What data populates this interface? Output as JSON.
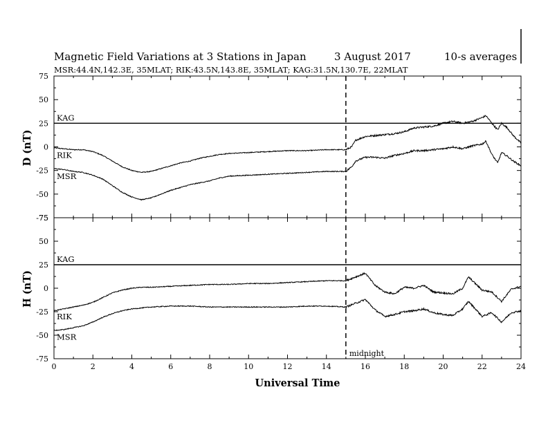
{
  "chart_data": {
    "type": "line",
    "title": "Magnetic Field Variations at 3 Stations in Japan",
    "date": "3   August  2017",
    "averaging": "10-s averages",
    "subtitle": "MSR:44.4N,142.3E, 35MLAT;  RIK:43.5N,143.8E, 35MLAT;  KAG:31.5N,130.7E, 22MLAT",
    "xlabel": "Universal Time",
    "xlim": [
      0,
      24
    ],
    "xticks": [
      "0",
      "2",
      "4",
      "6",
      "8",
      "10",
      "12",
      "14",
      "16",
      "18",
      "20",
      "22",
      "24"
    ],
    "midnight_marker": {
      "x": 15,
      "label": "midnight"
    },
    "panels": [
      {
        "ylabel": "D (nT)",
        "ylim": [
          -75,
          75
        ],
        "yticks": [
          "75",
          "50",
          "25",
          "0",
          "-25",
          "-50",
          "-75"
        ],
        "series": [
          {
            "name": "KAG",
            "x": [
              0,
              24
            ],
            "y": [
              25,
              25
            ]
          },
          {
            "name": "RIK",
            "x": [
              0,
              0.5,
              1,
              1.5,
              2,
              2.5,
              3,
              3.5,
              4,
              4.5,
              5,
              5.5,
              6,
              6.5,
              7,
              7.5,
              8,
              8.5,
              9,
              10,
              11,
              12,
              13,
              14,
              15,
              15.3,
              15.5,
              16,
              16.5,
              17,
              17.5,
              18,
              18.5,
              19,
              19.5,
              20,
              20.5,
              21,
              21.5,
              22,
              22.2,
              22.5,
              22.8,
              23,
              23.3,
              23.6,
              24
            ],
            "y": [
              -1,
              -2,
              -3,
              -3,
              -5,
              -9,
              -15,
              -21,
              -25,
              -27,
              -26,
              -23,
              -20,
              -17,
              -15,
              -12,
              -10,
              -8,
              -7,
              -6,
              -5,
              -4,
              -4,
              -3,
              -3,
              0,
              7,
              11,
              12,
              13,
              14,
              16,
              20,
              21,
              22,
              25,
              27,
              25,
              27,
              31,
              33,
              25,
              18,
              25,
              20,
              12,
              4
            ]
          },
          {
            "name": "MSR",
            "x": [
              0,
              0.5,
              1,
              1.5,
              2,
              2.5,
              3,
              3.5,
              4,
              4.5,
              5,
              5.5,
              6,
              6.5,
              7,
              7.5,
              8,
              8.5,
              9,
              10,
              11,
              12,
              13,
              14,
              15,
              15.3,
              15.5,
              16,
              16.5,
              17,
              17.5,
              18,
              18.5,
              19,
              19.5,
              20,
              20.5,
              21,
              21.5,
              22,
              22.2,
              22.5,
              22.8,
              23,
              23.3,
              23.6,
              24
            ],
            "y": [
              -23,
              -24,
              -26,
              -27,
              -30,
              -34,
              -41,
              -48,
              -53,
              -56,
              -54,
              -50,
              -46,
              -43,
              -40,
              -38,
              -36,
              -33,
              -31,
              -30,
              -29,
              -28,
              -27,
              -26,
              -26,
              -21,
              -15,
              -11,
              -11,
              -12,
              -9,
              -7,
              -4,
              -4,
              -3,
              -2,
              0,
              -2,
              1,
              3,
              6,
              -8,
              -17,
              -6,
              -10,
              -15,
              -20
            ]
          }
        ]
      },
      {
        "ylabel": "H (nT)",
        "ylim": [
          -75,
          75
        ],
        "yticks": [
          "75",
          "50",
          "25",
          "0",
          "-25",
          "-50",
          "-75"
        ],
        "series": [
          {
            "name": "KAG",
            "x": [
              0,
              24
            ],
            "y": [
              25,
              25
            ]
          },
          {
            "name": "RIK",
            "x": [
              0,
              0.5,
              1,
              1.5,
              2,
              2.5,
              3,
              3.5,
              4,
              4.5,
              5,
              6,
              7,
              8,
              9,
              10,
              11,
              12,
              13,
              14,
              15,
              15.5,
              16,
              16.5,
              17,
              17.5,
              18,
              18.5,
              19,
              19.5,
              20,
              20.5,
              21,
              21.3,
              21.7,
              22,
              22.5,
              23,
              23.5,
              24
            ],
            "y": [
              -24,
              -22,
              -20,
              -18,
              -15,
              -10,
              -5,
              -2,
              0,
              1,
              1,
              2,
              3,
              4,
              4,
              5,
              5,
              6,
              7,
              8,
              8,
              12,
              16,
              3,
              -4,
              -6,
              1,
              0,
              3,
              -4,
              -5,
              -6,
              0,
              12,
              4,
              -2,
              -4,
              -14,
              -1,
              2
            ]
          },
          {
            "name": "MSR",
            "x": [
              0,
              0.5,
              1,
              1.5,
              2,
              2.5,
              3,
              3.5,
              4,
              4.5,
              5,
              6,
              7,
              8,
              9,
              10,
              11,
              12,
              13,
              14,
              15,
              15.5,
              16,
              16.5,
              17,
              17.5,
              18,
              18.5,
              19,
              19.5,
              20,
              20.5,
              21,
              21.3,
              21.7,
              22,
              22.5,
              23,
              23.5,
              24
            ],
            "y": [
              -45,
              -44,
              -42,
              -40,
              -36,
              -31,
              -27,
              -24,
              -22,
              -21,
              -20,
              -19,
              -19,
              -20,
              -20,
              -20,
              -20,
              -20,
              -19,
              -19,
              -20,
              -16,
              -12,
              -23,
              -30,
              -28,
              -25,
              -24,
              -22,
              -26,
              -28,
              -29,
              -22,
              -14,
              -23,
              -30,
              -26,
              -36,
              -26,
              -24
            ]
          }
        ]
      }
    ]
  }
}
